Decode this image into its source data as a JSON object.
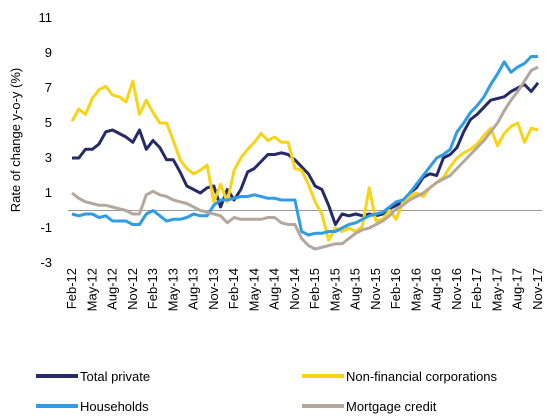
{
  "chart_data": {
    "type": "line",
    "y_label": "Rate of change y-o-y (%)",
    "categories": [
      "Feb-12",
      null,
      null,
      "May-12",
      null,
      null,
      "Aug-12",
      null,
      null,
      "Nov-12",
      null,
      null,
      "Feb-13",
      null,
      null,
      "May-13",
      null,
      null,
      "Aug-13",
      null,
      null,
      "Nov-13",
      null,
      null,
      "Feb-14",
      null,
      null,
      "May-14",
      null,
      null,
      "Aug-14",
      null,
      null,
      "Nov-14",
      null,
      null,
      "Feb-15",
      null,
      null,
      "May-15",
      null,
      null,
      "Aug-15",
      null,
      null,
      "Nov-15",
      null,
      null,
      "Feb-16",
      null,
      null,
      "May-16",
      null,
      null,
      "Aug-16",
      null,
      null,
      "Nov-16",
      null,
      null,
      "Feb-17",
      null,
      null,
      "May-17",
      null,
      null,
      "Aug-17",
      null,
      null,
      "Nov-17"
    ],
    "ylim": [
      -3,
      11
    ],
    "yticks": [
      -3,
      -1,
      1,
      3,
      5,
      7,
      9,
      11
    ],
    "zero_line": true,
    "series": [
      {
        "name": "Total private",
        "color": "#262a66",
        "values": [
          3.0,
          3.0,
          3.5,
          3.5,
          3.8,
          4.5,
          4.6,
          4.4,
          4.2,
          3.9,
          4.6,
          3.5,
          4.0,
          3.6,
          2.9,
          2.9,
          2.2,
          1.4,
          1.2,
          1.0,
          1.3,
          1.4,
          0.2,
          1.2,
          0.6,
          1.2,
          2.2,
          2.4,
          2.8,
          3.2,
          3.2,
          3.3,
          3.2,
          2.9,
          2.5,
          2.1,
          1.4,
          1.2,
          0.3,
          -0.8,
          -0.2,
          -0.3,
          -0.2,
          -0.3,
          -0.2,
          -0.3,
          -0.2,
          0.1,
          0.3,
          0.5,
          1.0,
          1.3,
          1.9,
          2.1,
          2.0,
          3.0,
          3.2,
          3.6,
          4.5,
          5.2,
          5.5,
          5.9,
          6.3,
          6.4,
          6.5,
          6.8,
          7.0,
          7.2,
          6.8,
          7.3
        ]
      },
      {
        "name": "Non-financial corporations",
        "color": "#f7d417",
        "values": [
          5.1,
          5.8,
          5.5,
          6.4,
          6.9,
          7.1,
          6.6,
          6.5,
          6.2,
          7.4,
          5.5,
          6.3,
          5.6,
          5.0,
          5.0,
          4.0,
          2.9,
          2.4,
          2.1,
          2.3,
          2.6,
          0.5,
          1.5,
          0.5,
          2.3,
          3.0,
          3.5,
          3.9,
          4.4,
          4.0,
          4.2,
          3.9,
          3.9,
          2.4,
          2.3,
          1.5,
          0.5,
          -0.2,
          -1.7,
          -1.0,
          -1.2,
          -1.0,
          -1.2,
          -0.9,
          1.3,
          -0.6,
          -0.5,
          0.0,
          -0.5,
          0.5,
          0.8,
          1.0,
          0.8,
          1.3,
          1.6,
          1.9,
          2.5,
          3.0,
          3.3,
          3.5,
          3.8,
          4.3,
          4.7,
          3.7,
          4.4,
          4.8,
          5.0,
          3.9,
          4.7,
          4.6
        ]
      },
      {
        "name": "Households",
        "color": "#2f9ce4",
        "values": [
          -0.2,
          -0.3,
          -0.2,
          -0.2,
          -0.4,
          -0.3,
          -0.6,
          -0.6,
          -0.6,
          -0.8,
          -0.8,
          -0.2,
          0.0,
          -0.3,
          -0.6,
          -0.5,
          -0.5,
          -0.4,
          -0.2,
          -0.3,
          -0.3,
          0.3,
          0.6,
          0.6,
          0.7,
          0.8,
          0.8,
          0.9,
          0.8,
          0.7,
          0.7,
          0.6,
          0.6,
          0.6,
          -1.2,
          -1.4,
          -1.3,
          -1.3,
          -1.2,
          -1.2,
          -1.0,
          -0.8,
          -0.7,
          -0.5,
          -0.3,
          -0.2,
          -0.1,
          0.2,
          0.5,
          0.6,
          1.0,
          1.5,
          2.0,
          2.5,
          3.0,
          3.2,
          3.5,
          4.5,
          5.0,
          5.6,
          6.0,
          6.5,
          7.2,
          7.8,
          8.5,
          7.9,
          8.2,
          8.4,
          8.8,
          8.8
        ]
      },
      {
        "name": "Mortgage credit",
        "color": "#b3a79e",
        "values": [
          1.0,
          0.7,
          0.5,
          0.4,
          0.3,
          0.3,
          0.2,
          0.1,
          0.0,
          -0.2,
          -0.2,
          0.9,
          1.1,
          0.9,
          0.8,
          0.6,
          0.5,
          0.4,
          0.2,
          0.0,
          -0.1,
          -0.2,
          -0.3,
          -0.7,
          -0.4,
          -0.5,
          -0.5,
          -0.5,
          -0.5,
          -0.4,
          -0.4,
          -0.7,
          -0.8,
          -0.8,
          -1.6,
          -2.0,
          -2.2,
          -2.1,
          -2.0,
          -1.9,
          -1.9,
          -1.6,
          -1.3,
          -1.1,
          -1.0,
          -0.8,
          -0.6,
          -0.3,
          0.1,
          0.3,
          0.6,
          0.8,
          1.0,
          1.3,
          1.6,
          1.8,
          2.0,
          2.4,
          2.8,
          3.2,
          3.6,
          4.0,
          4.5,
          5.0,
          5.7,
          6.3,
          6.8,
          7.4,
          8.0,
          8.2
        ]
      }
    ]
  }
}
